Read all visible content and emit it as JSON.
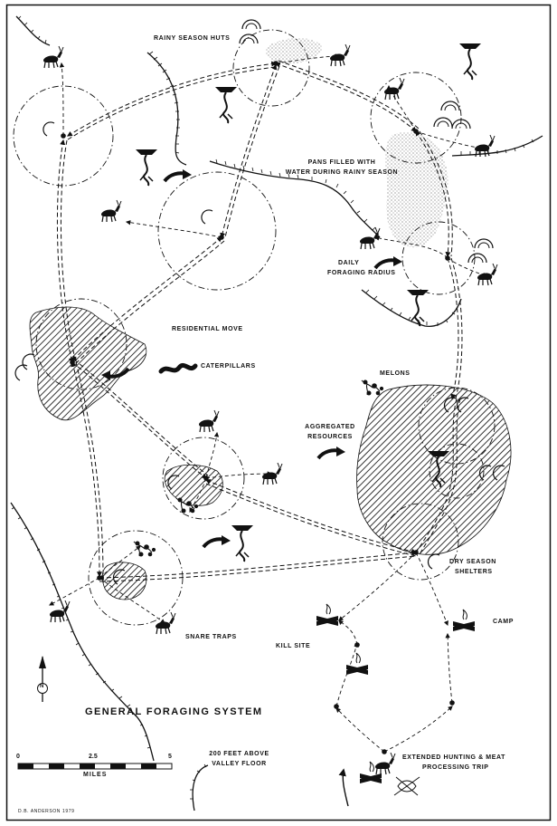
{
  "labels": {
    "rainy_season_huts": "RAINY SEASON HUTS",
    "pans_line1": "PANS FILLED WITH",
    "pans_line2": "WATER DURING RAINY SEASON",
    "daily_line1": "DAILY",
    "daily_line2": "FORAGING RADIUS",
    "residential_move": "RESIDENTIAL MOVE",
    "caterpillars": "CATERPILLARS",
    "melons": "MELONS",
    "aggregated_line1": "AGGREGATED",
    "aggregated_line2": "RESOURCES",
    "dry_line1": "DRY SEASON",
    "dry_line2": "SHELTERS",
    "camp": "CAMP",
    "kill_site": "KILL SITE",
    "snare_traps": "SNARE TRAPS",
    "elev_line1": "200 FEET ABOVE",
    "elev_line2": "VALLEY FLOOR",
    "extended_line1": "EXTENDED HUNTING & MEAT",
    "extended_line2": "PROCESSING TRIP"
  },
  "title": "GENERAL FORAGING SYSTEM",
  "scale": {
    "ticks": [
      "0",
      "2.5",
      "5"
    ],
    "unit": "MILES"
  },
  "north": "N",
  "credit": "D.B. ANDERSON  1979",
  "icons": {
    "hut": "hut-icon",
    "antelope": "antelope-icon",
    "tree": "tree-icon",
    "caterpillar": "caterpillar-icon",
    "melon": "melon-plant-icon",
    "fire": "campfire-icon",
    "arrow": "move-arrow-icon",
    "north": "north-arrow-icon"
  },
  "colors": {
    "ink": "#111111",
    "paper": "#ffffff"
  }
}
